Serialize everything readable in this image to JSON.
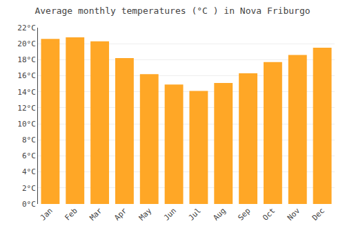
{
  "chart_data": {
    "type": "bar",
    "title": "Average monthly temperatures (°C ) in Nova Friburgo",
    "categories": [
      "Jan",
      "Feb",
      "Mar",
      "Apr",
      "May",
      "Jun",
      "Jul",
      "Aug",
      "Sep",
      "Oct",
      "Nov",
      "Dec"
    ],
    "values": [
      20.6,
      20.8,
      20.3,
      18.2,
      16.2,
      14.9,
      14.1,
      15.1,
      16.3,
      17.7,
      18.6,
      19.5
    ],
    "color": "#FFA726",
    "ylim": [
      0,
      22
    ],
    "yticks": [
      {
        "value": 0,
        "label": "0°C"
      },
      {
        "value": 2,
        "label": "2°C"
      },
      {
        "value": 4,
        "label": "4°C"
      },
      {
        "value": 6,
        "label": "6°C"
      },
      {
        "value": 8,
        "label": "8°C"
      },
      {
        "value": 10,
        "label": "10°C"
      },
      {
        "value": 12,
        "label": "12°C"
      },
      {
        "value": 14,
        "label": "14°C"
      },
      {
        "value": 16,
        "label": "16°C"
      },
      {
        "value": 18,
        "label": "18°C"
      },
      {
        "value": 20,
        "label": "20°C"
      },
      {
        "value": 22,
        "label": "22°C"
      }
    ],
    "grid": true
  }
}
